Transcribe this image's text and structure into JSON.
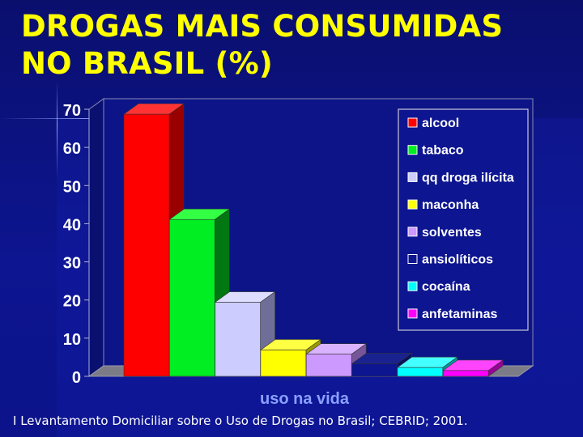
{
  "slide": {
    "title_line1": "DROGAS MAIS CONSUMIDAS",
    "title_line2": "NO BRASIL (%)",
    "caption": "I Levantamento Domiciliar sobre o Uso de Drogas no Brasil; CEBRID; 2001."
  },
  "chart_data": {
    "type": "bar",
    "categories": [
      "uso na vida"
    ],
    "xlabel": "uso na vida",
    "ylabel": "",
    "ylim": [
      0,
      70
    ],
    "yticks": [
      "0",
      "10",
      "20",
      "30",
      "40",
      "50",
      "60",
      "70"
    ],
    "grid": false,
    "legend_position": "top-right",
    "series": [
      {
        "name": "alcool",
        "value": 68.7,
        "color": "#ff0000",
        "side": "#990000",
        "top": "#ff3333"
      },
      {
        "name": "tabaco",
        "value": 41.1,
        "color": "#00ee22",
        "side": "#007711",
        "top": "#33ff44"
      },
      {
        "name": "qq droga ilícita",
        "value": 19.4,
        "color": "#ccccff",
        "side": "#6e6e99",
        "top": "#ddddff"
      },
      {
        "name": "maconha",
        "value": 6.9,
        "color": "#ffff00",
        "side": "#999900",
        "top": "#ffff44"
      },
      {
        "name": "solventes",
        "value": 5.8,
        "color": "#cc99ff",
        "side": "#775599",
        "top": "#d9b3ff"
      },
      {
        "name": "ansiolíticos",
        "value": 3.3,
        "color": "#0d1590",
        "side": "#0a0f60",
        "top": "#1a2290"
      },
      {
        "name": "cocaína",
        "value": 2.3,
        "color": "#00ffff",
        "side": "#009999",
        "top": "#44ffff"
      },
      {
        "name": "anfetaminas",
        "value": 1.5,
        "color": "#ff00ff",
        "side": "#990099",
        "top": "#ff44ff"
      }
    ]
  }
}
